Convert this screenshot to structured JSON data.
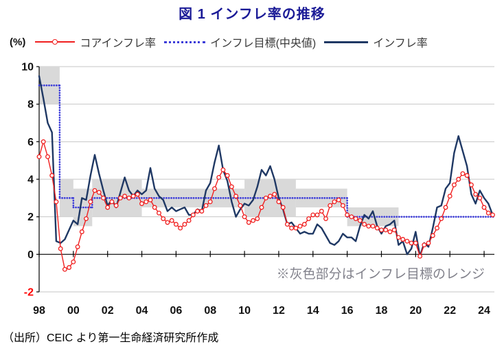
{
  "title": "図 1  インフレ率の推移",
  "unit_label": "(%)",
  "annotation": "※灰色部分はインフレ目標のレンジ",
  "source": "（出所）CEIC より第一生命経済研究所作成",
  "colors": {
    "title": "#1b1b97",
    "core_line": "#f01e1e",
    "target_line": "#3c3cd9",
    "headline_line": "#1f3864",
    "band": "#d9d9d9",
    "grid": "#c6c6c6",
    "annotation": "#82828c",
    "negative_tick": "#ff0000"
  },
  "legend": [
    {
      "label": "コアインフレ率",
      "swatch": "red-line-circle-marker"
    },
    {
      "label": "インフレ目標(中央値)",
      "swatch": "blue-dotted-line"
    },
    {
      "label": "インフレ率",
      "swatch": "navy-solid-line"
    }
  ],
  "chart_data": {
    "type": "line",
    "title": "図 1  インフレ率の推移",
    "ylabel": "(%)",
    "xlim": [
      1998,
      2024.6
    ],
    "ylim": [
      -2,
      10
    ],
    "grid": true,
    "x_start": 1998,
    "x_step": 0.25,
    "yticks": [
      10,
      8,
      6,
      4,
      2,
      0,
      -2
    ],
    "xticks": [
      {
        "year": 1998,
        "label": "98"
      },
      {
        "year": 2000,
        "label": "00"
      },
      {
        "year": 2002,
        "label": "02"
      },
      {
        "year": 2004,
        "label": "04"
      },
      {
        "year": 2006,
        "label": "06"
      },
      {
        "year": 2008,
        "label": "08"
      },
      {
        "year": 2010,
        "label": "10"
      },
      {
        "year": 2012,
        "label": "12"
      },
      {
        "year": 2014,
        "label": "14"
      },
      {
        "year": 2016,
        "label": "16"
      },
      {
        "year": 2018,
        "label": "18"
      },
      {
        "year": 2020,
        "label": "20"
      },
      {
        "year": 2022,
        "label": "22"
      },
      {
        "year": 2024,
        "label": "24"
      }
    ],
    "target_ranges": [
      {
        "from": 1998.0,
        "to": 1999.2,
        "low": 8.0,
        "high": 10.0
      },
      {
        "from": 1999.2,
        "to": 2000.0,
        "low": 2.0,
        "high": 4.0
      },
      {
        "from": 2000.0,
        "to": 2001.1,
        "low": 1.5,
        "high": 3.5
      },
      {
        "from": 2001.1,
        "to": 2004.0,
        "low": 2.0,
        "high": 4.0
      },
      {
        "from": 2004.0,
        "to": 2010.0,
        "low": 2.5,
        "high": 3.5
      },
      {
        "from": 2010.0,
        "to": 2013.0,
        "low": 2.0,
        "high": 4.0
      },
      {
        "from": 2013.0,
        "to": 2016.0,
        "low": 2.5,
        "high": 3.5
      },
      {
        "from": 2016.0,
        "to": 2019.0,
        "low": 1.5,
        "high": 2.5
      }
    ],
    "series": [
      {
        "name": "コアインフレ率",
        "color": "#f01e1e",
        "style": "solid-with-open-circle-markers",
        "values": [
          5.2,
          6.0,
          5.2,
          4.2,
          2.8,
          0.3,
          -0.8,
          -0.7,
          -0.4,
          0.4,
          1.2,
          1.9,
          2.8,
          3.4,
          3.3,
          3.0,
          2.5,
          2.8,
          2.6,
          3.0,
          3.1,
          3.0,
          3.1,
          3.2,
          2.7,
          2.8,
          2.9,
          2.5,
          2.2,
          1.9,
          1.7,
          1.8,
          1.6,
          1.4,
          1.6,
          1.8,
          2.1,
          2.3,
          2.3,
          2.6,
          2.8,
          3.5,
          4.1,
          4.5,
          4.2,
          3.6,
          3.1,
          2.6,
          2.0,
          1.7,
          1.8,
          1.9,
          2.5,
          3.0,
          3.1,
          3.2,
          2.8,
          2.5,
          1.6,
          1.4,
          1.4,
          1.5,
          1.6,
          1.9,
          2.1,
          2.1,
          2.3,
          1.9,
          2.6,
          2.8,
          2.9,
          2.6,
          2.1,
          2.0,
          1.9,
          1.8,
          1.6,
          1.5,
          1.5,
          1.4,
          1.3,
          1.3,
          1.2,
          1.3,
          0.9,
          0.8,
          0.7,
          0.6,
          0.6,
          -0.1,
          0.5,
          0.6,
          1.0,
          1.4,
          1.9,
          2.5,
          3.1,
          3.7,
          4.0,
          4.3,
          4.2,
          3.7,
          3.2,
          3.0,
          2.5,
          2.2,
          2.1
        ]
      },
      {
        "name": "インフレ目標(中央値)",
        "color": "#3c3cd9",
        "style": "dotted",
        "segments": [
          {
            "from": 1998.0,
            "to": 1999.2,
            "value": 9.0
          },
          {
            "from": 1999.2,
            "to": 2000.0,
            "value": 3.0
          },
          {
            "from": 2000.0,
            "to": 2001.1,
            "value": 2.5
          },
          {
            "from": 2001.1,
            "to": 2016.0,
            "value": 3.0
          },
          {
            "from": 2016.0,
            "to": 2024.6,
            "value": 2.0
          }
        ]
      },
      {
        "name": "インフレ率",
        "color": "#1f3864",
        "style": "solid",
        "values": [
          9.5,
          8.3,
          7.0,
          6.5,
          0.7,
          0.6,
          0.8,
          1.3,
          1.8,
          1.6,
          3.0,
          2.9,
          4.2,
          5.3,
          4.3,
          3.4,
          2.6,
          2.9,
          2.5,
          3.3,
          4.1,
          3.4,
          3.1,
          3.4,
          3.2,
          3.4,
          4.6,
          3.5,
          3.1,
          2.9,
          2.3,
          2.5,
          2.3,
          2.4,
          2.5,
          2.1,
          2.1,
          2.4,
          2.3,
          3.4,
          3.8,
          4.9,
          5.8,
          4.5,
          3.9,
          2.8,
          2.0,
          2.4,
          2.7,
          2.6,
          2.9,
          3.6,
          4.5,
          4.2,
          4.7,
          4.0,
          3.0,
          2.4,
          1.6,
          1.7,
          1.4,
          1.1,
          1.2,
          1.1,
          1.1,
          1.6,
          1.4,
          1.0,
          0.6,
          0.5,
          0.7,
          1.1,
          0.9,
          0.9,
          0.7,
          1.5,
          2.1,
          1.9,
          2.3,
          1.5,
          1.1,
          1.5,
          1.6,
          1.8,
          0.5,
          0.7,
          0.0,
          0.3,
          1.2,
          -0.1,
          0.6,
          0.4,
          1.4,
          2.5,
          2.6,
          3.5,
          3.8,
          5.4,
          6.3,
          5.5,
          4.7,
          3.2,
          2.7,
          3.4,
          3.0,
          2.7,
          2.1
        ]
      }
    ]
  }
}
